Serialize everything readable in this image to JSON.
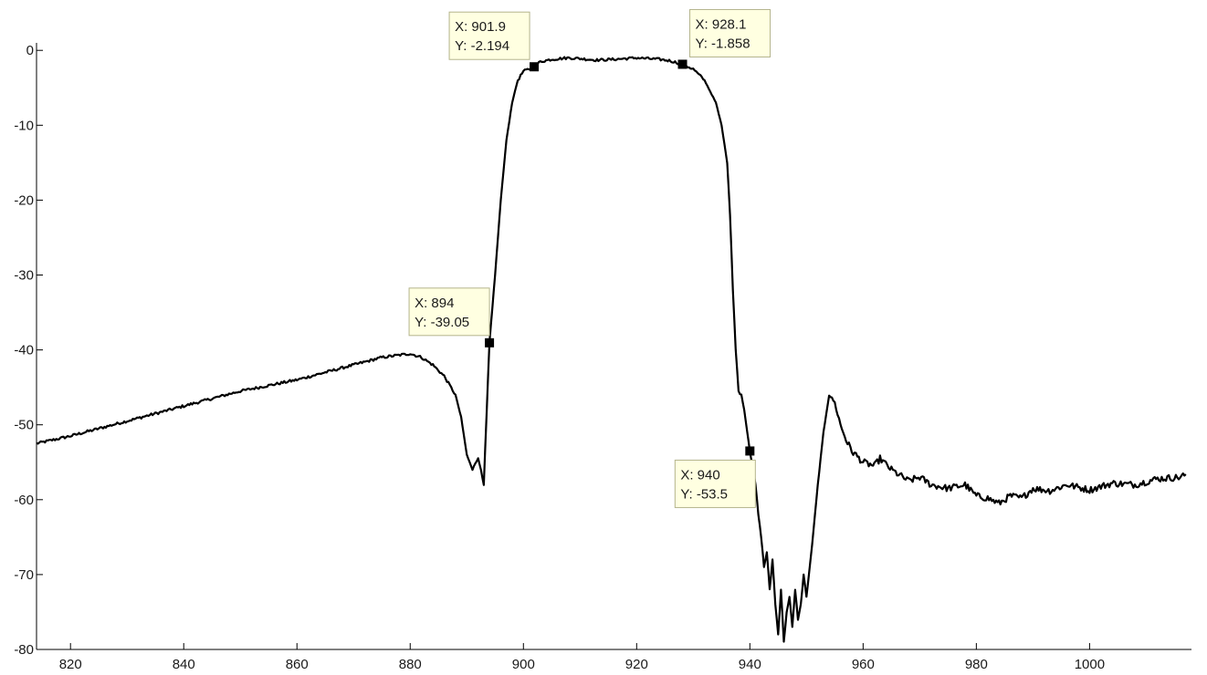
{
  "chart_data": {
    "type": "line",
    "title": "",
    "xlabel": "",
    "ylabel": "",
    "xlim": [
      814,
      1018
    ],
    "ylim": [
      -80,
      1
    ],
    "x_ticks": [
      820,
      840,
      860,
      880,
      900,
      920,
      940,
      960,
      980,
      1000
    ],
    "y_ticks": [
      0,
      -10,
      -20,
      -30,
      -40,
      -50,
      -60,
      -70,
      -80
    ],
    "grid": false,
    "line_color": "#000000",
    "series": [
      {
        "x": [
          814,
          820,
          830,
          840,
          850,
          860,
          865,
          870,
          875,
          878,
          880,
          882,
          884,
          886,
          888,
          889,
          890,
          891,
          891.5,
          892,
          892.5,
          893,
          894,
          895,
          896,
          897,
          898,
          899,
          900,
          901,
          901.9,
          903,
          905,
          908,
          910,
          913,
          916,
          920,
          924,
          926,
          928.1,
          930,
          932,
          934,
          935,
          936,
          936.5,
          937,
          937.5,
          938,
          938.5,
          939,
          940,
          941,
          941.5,
          942,
          942.5,
          943,
          943.5,
          944,
          944.5,
          945,
          945.5,
          946,
          946.5,
          947,
          947.5,
          948,
          948.5,
          949,
          949.5,
          950,
          951,
          952,
          953,
          954,
          955,
          956,
          957,
          958,
          960,
          962,
          963,
          965,
          968,
          970,
          972,
          975,
          978,
          980,
          982,
          984,
          986,
          988,
          990,
          993,
          996,
          1000,
          1004,
          1008,
          1012,
          1016,
          1017
        ],
        "y": [
          -52.5,
          -51.5,
          -49.5,
          -47.5,
          -45.5,
          -44,
          -43,
          -42,
          -41,
          -40.7,
          -40.5,
          -41,
          -42,
          -43.5,
          -46,
          -49,
          -54,
          -56,
          -55,
          -54.5,
          -56,
          -58,
          -39.05,
          -30,
          -20,
          -12,
          -7,
          -4,
          -2.8,
          -2.5,
          -2.194,
          -1.5,
          -1.2,
          -1,
          -1.1,
          -1.3,
          -1.2,
          -1,
          -1.2,
          -1.4,
          -1.858,
          -2.5,
          -4,
          -7,
          -10,
          -15,
          -22,
          -32,
          -40,
          -45.5,
          -46,
          -48,
          -53.5,
          -58,
          -62,
          -65,
          -69,
          -67,
          -72,
          -68,
          -74,
          -78,
          -72,
          -79,
          -75,
          -73,
          -77,
          -72,
          -76,
          -74,
          -70,
          -73,
          -66,
          -58,
          -51,
          -46,
          -47,
          -50,
          -52,
          -53.5,
          -55,
          -55.5,
          -54.5,
          -56,
          -57.5,
          -57,
          -58,
          -58.5,
          -58,
          -59.5,
          -59.8,
          -60.5,
          -59.5,
          -59.8,
          -58.5,
          -58.8,
          -58,
          -58.7,
          -57.8,
          -58,
          -57.2,
          -57,
          -56.6
        ]
      }
    ],
    "annotations": [
      {
        "x": 894,
        "y": -39.05,
        "label_x": "X: 894",
        "label_y": "Y: -39.05"
      },
      {
        "x": 901.9,
        "y": -2.194,
        "label_x": "X: 901.9",
        "label_y": "Y: -2.194"
      },
      {
        "x": 928.1,
        "y": -1.858,
        "label_x": "X: 928.1",
        "label_y": "Y: -1.858"
      },
      {
        "x": 940,
        "y": -53.5,
        "label_x": "X: 940",
        "label_y": "Y: -53.5"
      }
    ],
    "annotation_style": {
      "fill": "#ffffe1",
      "border": "#b4b48c"
    }
  }
}
